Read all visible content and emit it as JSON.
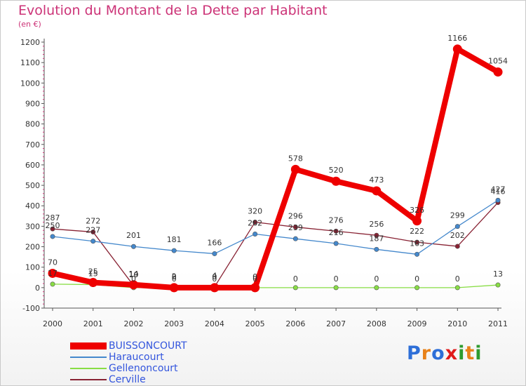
{
  "title": "Evolution du Montant de la Dette par Habitant",
  "unit_label": "(en €)",
  "logo": {
    "letters": [
      "P",
      "r",
      "o",
      "x",
      "i",
      "t",
      "i"
    ],
    "colors": [
      "#2e6fd8",
      "#e8821a",
      "#2e6fd8",
      "#e01b1b",
      "#2e9b2e",
      "#e8821a",
      "#2e9b2e"
    ]
  },
  "chart_data": {
    "type": "line",
    "title": "Evolution du Montant de la Dette par Habitant",
    "ylabel": "(en €)",
    "xlabel": "",
    "x": [
      "2000",
      "2001",
      "2002",
      "2003",
      "2004",
      "2005",
      "2006",
      "2007",
      "2008",
      "2009",
      "2010",
      "2011"
    ],
    "ylim": [
      -100,
      1200
    ],
    "yticks": [
      -100,
      0,
      100,
      200,
      300,
      400,
      500,
      600,
      700,
      800,
      900,
      1000,
      1100,
      1200
    ],
    "grid": false,
    "legend_position": "bottom-left",
    "series": [
      {
        "name": "BUISSONCOURT",
        "color": "#ee0000",
        "values": [
          70,
          25,
          14,
          0,
          0,
          0,
          578,
          520,
          473,
          326,
          1166,
          1054
        ],
        "labels": [
          "70",
          "25",
          "14",
          "0",
          "0",
          "0",
          "578",
          "520",
          "473",
          "326",
          "1166",
          "1054"
        ]
      },
      {
        "name": "Haraucourt",
        "color": "#4488cc",
        "values": [
          250,
          227,
          201,
          181,
          166,
          262,
          239,
          216,
          187,
          163,
          299,
          427
        ],
        "labels": [
          "250",
          "227",
          "201",
          "181",
          "166",
          "262",
          "239",
          "216",
          "187",
          "163",
          "299",
          "427"
        ]
      },
      {
        "name": "Gellenoncourt",
        "color": "#88dd44",
        "values": [
          17,
          15,
          0,
          0,
          0,
          0,
          0,
          0,
          0,
          0,
          0,
          13
        ],
        "labels": [
          "17",
          "15",
          "0",
          "0",
          "0",
          "0",
          "0",
          "0",
          "0",
          "0",
          "0",
          "13"
        ]
      },
      {
        "name": "Cerville",
        "color": "#882233",
        "values": [
          287,
          272,
          10,
          2,
          4,
          320,
          296,
          276,
          256,
          222,
          202,
          416
        ],
        "labels": [
          "287",
          "272",
          "10",
          "2",
          "4",
          "320",
          "296",
          "276",
          "256",
          "222",
          "202",
          "416"
        ]
      }
    ]
  }
}
